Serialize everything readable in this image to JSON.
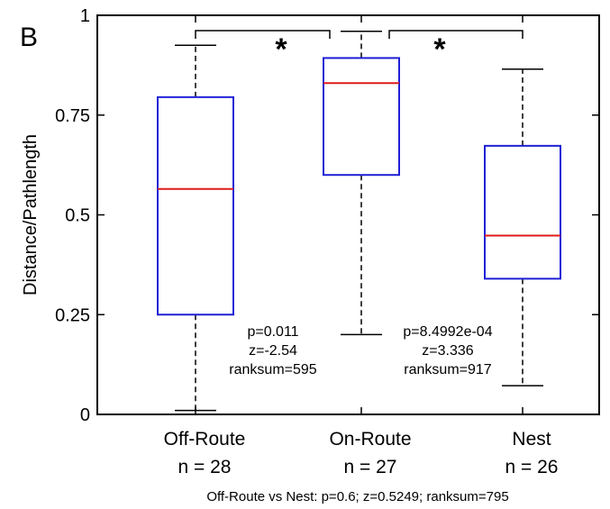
{
  "panel_label": "B",
  "footer_text": "Off-Route vs Nest: p=0.6; z=0.5249; ranksum=795",
  "colors": {
    "box": "#1f1fd6",
    "median": "#e01b1b",
    "axis": "#000000"
  },
  "chart_data": {
    "type": "box",
    "ylabel": "Distance/Pathlength",
    "ylim": [
      0,
      1
    ],
    "yticks": [
      {
        "value": 0,
        "label": "0"
      },
      {
        "value": 0.25,
        "label": "0.25"
      },
      {
        "value": 0.5,
        "label": "0.5"
      },
      {
        "value": 0.75,
        "label": "0.75"
      },
      {
        "value": 1,
        "label": "1"
      }
    ],
    "groups": [
      {
        "label": "Off-Route",
        "n_label": "n = 28",
        "whisker_low": 0.01,
        "q1": 0.25,
        "median": 0.565,
        "q3": 0.795,
        "whisker_high": 0.925
      },
      {
        "label": "On-Route",
        "n_label": "n = 27",
        "whisker_low": 0.2,
        "q1": 0.6,
        "median": 0.83,
        "q3": 0.893,
        "whisker_high": 0.96
      },
      {
        "label": "Nest",
        "n_label": "n = 26",
        "whisker_low": 0.072,
        "q1": 0.34,
        "median": 0.448,
        "q3": 0.673,
        "whisker_high": 0.865
      }
    ],
    "comparisons": [
      {
        "from": 0,
        "to": 1,
        "marker": "*",
        "lines": [
          "p=0.011",
          "z=-2.54",
          "ranksum=595"
        ]
      },
      {
        "from": 1,
        "to": 2,
        "marker": "*",
        "lines": [
          "p=8.4992e-04",
          "z=3.336",
          "ranksum=917"
        ]
      }
    ]
  }
}
